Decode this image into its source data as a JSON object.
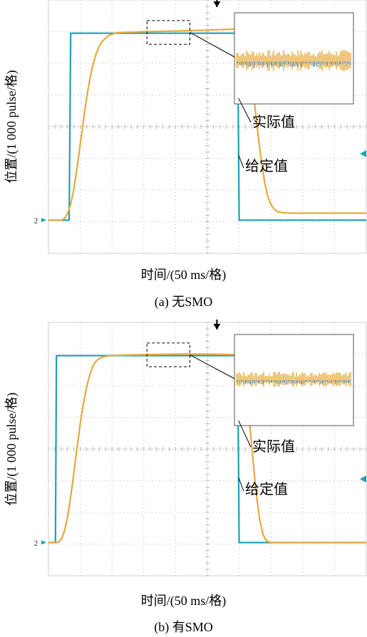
{
  "colors": {
    "setpoint": "#1aa3b3",
    "actual": "#e8a93a",
    "grid": "#b8b8b8",
    "screen_bg": "#ffffff",
    "frame": "#d0d0d0",
    "inset_setpoint": "#3a8fd0"
  },
  "chart_data": [
    {
      "type": "line",
      "title": "",
      "xlabel": "时间/(50 ms/格)",
      "ylabel": "位置/(1 000 pulse/格)",
      "caption": "(a) 无SMO",
      "channel_marker": "2",
      "grid": true,
      "legend_position": "none",
      "x_unit": "divisions",
      "y_unit": "divisions",
      "xlim": [
        0,
        10
      ],
      "ylim": [
        0,
        8
      ],
      "annotations": [
        "实际值",
        "给定值"
      ],
      "series": [
        {
          "name": "给定值",
          "x": [
            0,
            0.1,
            0.2,
            0.3,
            0.4,
            0.5,
            0.6,
            0.65,
            0.7,
            1.0,
            2.0,
            3.0,
            4.0,
            5.0,
            5.95,
            6.0,
            6.1,
            7.0,
            8.0,
            9.0,
            10.0
          ],
          "values": [
            1.05,
            1.05,
            1.05,
            1.05,
            1.05,
            1.05,
            1.05,
            1.05,
            6.95,
            6.95,
            6.95,
            6.95,
            6.95,
            6.95,
            6.95,
            1.05,
            1.05,
            1.05,
            1.05,
            1.05,
            1.05
          ]
        },
        {
          "name": "实际值",
          "x": [
            0,
            0.4,
            0.5,
            0.6,
            0.7,
            0.8,
            0.9,
            1.0,
            1.1,
            1.2,
            1.3,
            1.4,
            1.5,
            1.6,
            1.7,
            1.8,
            1.9,
            2.0,
            2.1,
            2.2,
            2.5,
            3.0,
            4.0,
            5.0,
            5.9,
            6.0,
            6.1,
            6.2,
            6.3,
            6.4,
            6.5,
            6.6,
            6.7,
            6.8,
            6.9,
            7.0,
            7.1,
            7.2,
            7.4,
            7.6,
            8.0,
            9.0,
            10.0
          ],
          "values": [
            1.05,
            1.05,
            1.1,
            1.25,
            1.55,
            2.05,
            2.7,
            3.45,
            4.2,
            4.9,
            5.5,
            5.95,
            6.3,
            6.55,
            6.7,
            6.8,
            6.88,
            6.92,
            6.95,
            6.97,
            6.98,
            7.0,
            7.02,
            7.05,
            7.08,
            7.05,
            6.95,
            6.7,
            6.2,
            5.5,
            4.6,
            3.7,
            2.9,
            2.25,
            1.8,
            1.55,
            1.4,
            1.32,
            1.28,
            1.27,
            1.27,
            1.27,
            1.27
          ]
        }
      ]
    },
    {
      "type": "line",
      "title": "",
      "xlabel": "时间/(50 ms/格)",
      "ylabel": "位置/(1 000 pulse/格)",
      "caption": "(b) 有SMO",
      "channel_marker": "2",
      "grid": true,
      "legend_position": "none",
      "x_unit": "divisions",
      "y_unit": "divisions",
      "xlim": [
        0,
        10
      ],
      "ylim": [
        0,
        8
      ],
      "annotations": [
        "实际值",
        "给定值"
      ],
      "series": [
        {
          "name": "给定值",
          "x": [
            0,
            0.1,
            0.2,
            0.22,
            0.25,
            1.0,
            2.0,
            3.0,
            4.0,
            5.0,
            5.95,
            6.0,
            6.1,
            7.0,
            8.0,
            9.0,
            10.0
          ],
          "values": [
            1.05,
            1.05,
            1.05,
            1.05,
            6.95,
            6.95,
            6.95,
            6.95,
            6.95,
            6.95,
            6.95,
            1.05,
            1.05,
            1.05,
            1.05,
            1.05,
            1.05
          ]
        },
        {
          "name": "实际值",
          "x": [
            0,
            0.3,
            0.4,
            0.5,
            0.6,
            0.7,
            0.8,
            0.9,
            1.0,
            1.1,
            1.2,
            1.3,
            1.4,
            1.5,
            1.6,
            1.7,
            1.8,
            2.0,
            2.5,
            3.0,
            4.0,
            5.0,
            5.95,
            6.05,
            6.15,
            6.25,
            6.35,
            6.45,
            6.55,
            6.65,
            6.75,
            6.85,
            6.95,
            7.05,
            7.2,
            8.0,
            9.0,
            10.0
          ],
          "values": [
            1.05,
            1.05,
            1.15,
            1.4,
            1.85,
            2.5,
            3.25,
            4.05,
            4.8,
            5.45,
            5.95,
            6.35,
            6.62,
            6.78,
            6.86,
            6.9,
            6.93,
            6.95,
            6.97,
            6.98,
            7.0,
            7.0,
            6.98,
            6.85,
            6.4,
            5.6,
            4.6,
            3.5,
            2.5,
            1.75,
            1.3,
            1.12,
            1.06,
            1.05,
            1.05,
            1.05,
            1.05,
            1.05
          ]
        }
      ]
    }
  ]
}
